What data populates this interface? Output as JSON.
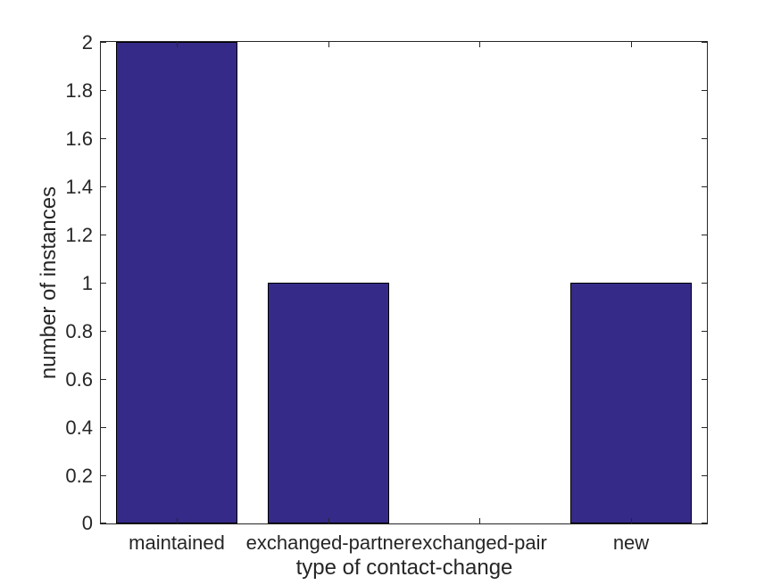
{
  "chart_data": {
    "type": "bar",
    "title": "",
    "categories": [
      "maintained",
      "exchanged-partner",
      "exchanged-pair",
      "new"
    ],
    "values": [
      2,
      1,
      0,
      1
    ],
    "xlabel": "type of contact-change",
    "ylabel": "number of instances",
    "ylim": [
      0,
      2
    ],
    "yticks": [
      0,
      0.2,
      0.4,
      0.6,
      0.8,
      1,
      1.2,
      1.4,
      1.6,
      1.8,
      2
    ],
    "ytick_labels": [
      "0",
      "0.2",
      "0.4",
      "0.6",
      "0.8",
      "1",
      "1.2",
      "1.4",
      "1.6",
      "1.8",
      "2"
    ],
    "bar_width_fraction": 0.8,
    "grid": false,
    "legend": "none",
    "tick_direction": "in",
    "box": true,
    "colors": {
      "bar_fill": "#352A87",
      "bar_edge": "#000000",
      "axis": "#262626",
      "text": "#262626",
      "background": "#FFFFFF"
    }
  }
}
